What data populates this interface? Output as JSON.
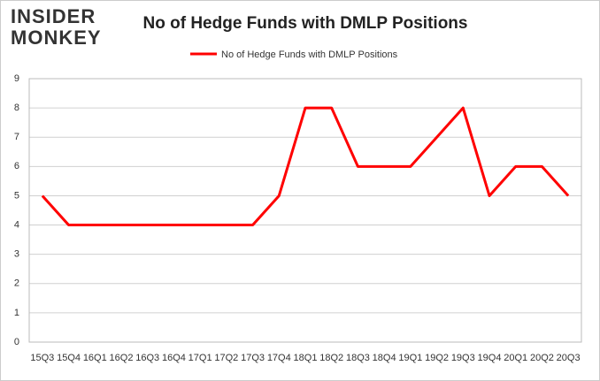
{
  "chart_data": {
    "type": "line",
    "logo": [
      "INSIDER",
      "MONKEY"
    ],
    "title": "No of Hedge Funds with DMLP Positions",
    "categories": [
      "15Q3",
      "15Q4",
      "16Q1",
      "16Q2",
      "16Q3",
      "16Q4",
      "17Q1",
      "17Q2",
      "17Q3",
      "17Q4",
      "18Q1",
      "18Q2",
      "18Q3",
      "18Q4",
      "19Q1",
      "19Q2",
      "19Q3",
      "19Q4",
      "20Q1",
      "20Q2",
      "20Q3"
    ],
    "series": [
      {
        "name": "No of Hedge Funds with DMLP Positions",
        "color": "#ff0000",
        "values": [
          5,
          4,
          4,
          4,
          4,
          4,
          4,
          4,
          4,
          5,
          8,
          8,
          6,
          6,
          6,
          7,
          8,
          5,
          6,
          6,
          5
        ]
      }
    ],
    "ylim": [
      0,
      9
    ],
    "yticks": [
      0,
      1,
      2,
      3,
      4,
      5,
      6,
      7,
      8,
      9
    ],
    "grid": true,
    "legend": "top"
  }
}
